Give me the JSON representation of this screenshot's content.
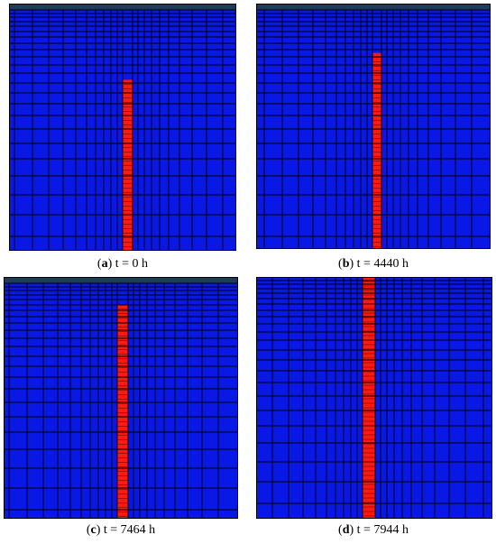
{
  "colors": {
    "mesh_fill": "#0a18e6",
    "grid_line": "#000000",
    "top_layer": "#1e3c55",
    "fracture": "#ff1a10"
  },
  "panels": [
    {
      "id": "a",
      "letter": "a",
      "label": "t = 0 h",
      "time_h": 0,
      "has_top_layer": true,
      "fracture_height_fraction": 0.71
    },
    {
      "id": "b",
      "letter": "b",
      "label": "t = 4440 h",
      "time_h": 4440,
      "has_top_layer": true,
      "fracture_height_fraction": 0.82
    },
    {
      "id": "c",
      "letter": "c",
      "label": "t = 7464 h",
      "time_h": 7464,
      "has_top_layer": true,
      "fracture_height_fraction": 0.91
    },
    {
      "id": "d",
      "letter": "d",
      "label": "t = 7944 h",
      "time_h": 7944,
      "has_top_layer": false,
      "fracture_height_fraction": 1.0
    }
  ]
}
